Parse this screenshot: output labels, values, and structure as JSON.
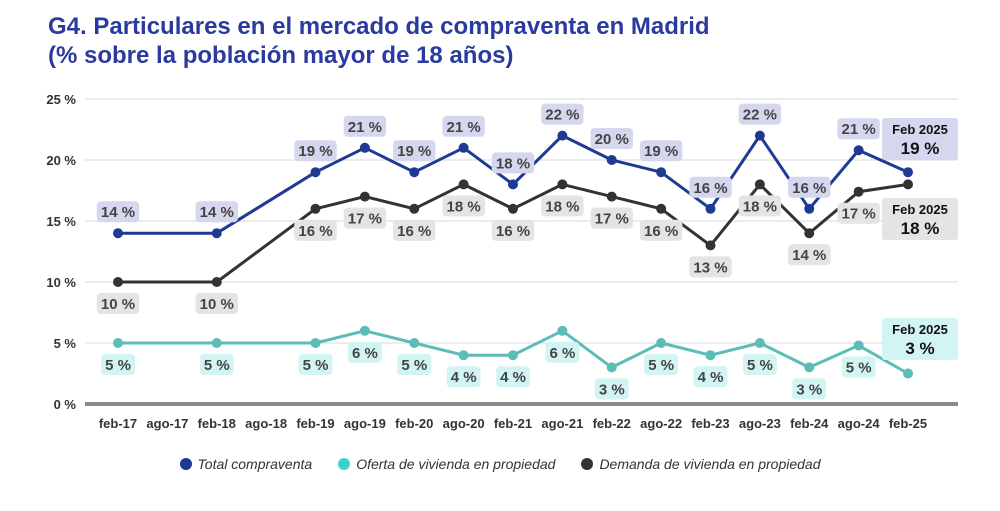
{
  "header": {
    "title_line1": "G4. Particulares en el mercado de compraventa en Madrid",
    "title_line2": "(% sobre la población mayor de 18 años)"
  },
  "chart_data": {
    "type": "line",
    "title": "G4. Particulares en el mercado de compraventa en Madrid (% sobre la población mayor de 18 años)",
    "categories": [
      "feb-17",
      "ago-17",
      "feb-18",
      "ago-18",
      "feb-19",
      "ago-19",
      "feb-20",
      "ago-20",
      "feb-21",
      "ago-21",
      "feb-22",
      "ago-22",
      "feb-23",
      "ago-23",
      "feb-24",
      "ago-24",
      "feb-25"
    ],
    "ylim": [
      0,
      25
    ],
    "yticks": [
      0,
      5,
      10,
      15,
      20,
      25
    ],
    "ytick_labels": [
      "0 %",
      "5 %",
      "10 %",
      "15 %",
      "20 %",
      "25 %"
    ],
    "xlabel": "",
    "ylabel": "",
    "grid": true,
    "legend_position": "bottom",
    "series": [
      {
        "name": "Total compraventa",
        "color": "#1f3a93",
        "values": [
          14,
          null,
          14,
          null,
          19,
          21,
          19,
          21,
          18,
          22,
          20,
          19,
          16,
          22,
          16,
          20.8,
          19
        ],
        "labels": [
          "14 %",
          null,
          "14 %",
          null,
          "19 %",
          "21 %",
          "19 %",
          "21 %",
          "18 %",
          "22 %",
          "20 %",
          "19 %",
          "16 %",
          "22 %",
          "16 %",
          "21 %",
          null
        ],
        "label_pos": "above"
      },
      {
        "name": "Oferta de vivienda en propiedad",
        "color": "#5bbcb8",
        "values": [
          5,
          null,
          5,
          null,
          5,
          6,
          5,
          4,
          4,
          6,
          3,
          5,
          4,
          5,
          3,
          4.8,
          2.5
        ],
        "labels": [
          "5 %",
          null,
          "5 %",
          null,
          "5 %",
          "6 %",
          "5 %",
          "4 %",
          "4 %",
          "6 %",
          "3 %",
          "5 %",
          "4 %",
          "5 %",
          "3 %",
          "5 %",
          null
        ],
        "label_pos": "below"
      },
      {
        "name": "Demanda de vivienda en propiedad",
        "color": "#333333",
        "values": [
          10,
          null,
          10,
          null,
          16,
          17,
          16,
          18,
          16,
          18,
          17,
          16,
          13,
          18,
          14,
          17.4,
          18
        ],
        "labels": [
          "10 %",
          null,
          "10 %",
          null,
          "16 %",
          "17 %",
          "16 %",
          "18 %",
          "16 %",
          "18 %",
          "17 %",
          "16 %",
          "13 %",
          "18 %",
          "14 %",
          "17 %",
          null
        ],
        "label_pos": "below"
      }
    ],
    "callouts": [
      {
        "series": "Total compraventa",
        "period": "Feb 2025",
        "value": "19 %"
      },
      {
        "series": "Demanda de vivienda en propiedad",
        "period": "Feb 2025",
        "value": "18 %"
      },
      {
        "series": "Oferta de vivienda en propiedad",
        "period": "Feb 2025",
        "value": "3 %"
      }
    ]
  },
  "legend": {
    "items": [
      {
        "label": "Total compraventa",
        "color": "#1f3a93"
      },
      {
        "label": "Oferta de vivienda en propiedad",
        "color": "#40d0c8"
      },
      {
        "label": "Demanda de vivienda en propiedad",
        "color": "#333333"
      }
    ]
  }
}
